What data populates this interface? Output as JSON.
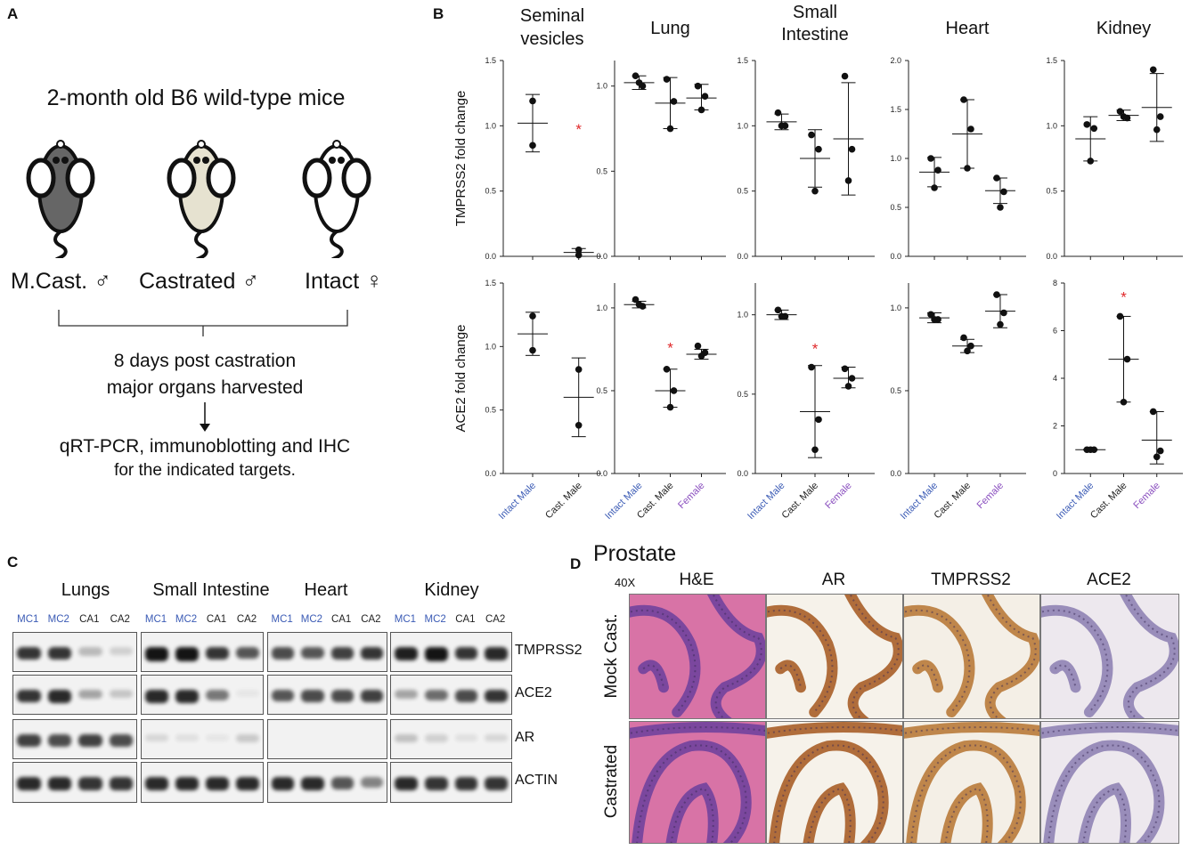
{
  "panel_letters": {
    "a": "A",
    "b": "B",
    "c": "C",
    "d": "D"
  },
  "panel_a": {
    "title": "2-month old B6 wild-type mice",
    "groups": [
      "M.Cast.",
      "Castrated",
      "Intact"
    ],
    "timepoint_line1": "8 days post castration",
    "timepoint_line2": "major organs harvested",
    "assay_line1": "qRT-PCR, immunoblotting and IHC",
    "assay_line2": "for the indicated targets.",
    "mouse_colors": [
      "#666666",
      "#e6e2d0",
      "#ffffff"
    ]
  },
  "panel_b": {
    "row_labels": [
      "TMPRSS2 fold change",
      "ACE2 fold change"
    ],
    "organ_titles": [
      "Seminal\nvesicles",
      "Lung",
      "Small\nIntestine",
      "Heart",
      "Kidney"
    ],
    "group_labels": [
      "Intact Male",
      "Cast. Male",
      "Female"
    ],
    "group_colors": [
      "#3b5bb5",
      "#222222",
      "#8a4fbf"
    ],
    "significance_mark": "*",
    "significance_color": "#e0292b"
  },
  "chart_data": [
    {
      "type": "scatter",
      "organ": "Seminal vesicles",
      "gene": "TMPRSS2",
      "ylim": [
        0,
        1.5
      ],
      "yticks": [
        "0.0",
        "0.5",
        "1.0",
        "1.5"
      ],
      "groups": [
        {
          "name": "Intact Male",
          "points": [
            1.19,
            0.85
          ],
          "mean": 1.02,
          "sd": [
            0.8,
            1.24
          ]
        },
        {
          "name": "Cast. Male",
          "points": [
            0.05,
            0.01
          ],
          "mean": 0.03,
          "sd": [
            0.0,
            0.06
          ]
        }
      ],
      "sig_group": 1,
      "sig_y": 0.99
    },
    {
      "type": "scatter",
      "organ": "Lung",
      "gene": "TMPRSS2",
      "ylim": [
        0,
        1.15
      ],
      "yticks": [
        "0.0",
        "0.5",
        "1.0"
      ],
      "groups": [
        {
          "name": "Intact Male",
          "points": [
            1.06,
            1.0,
            1.02
          ],
          "mean": 1.02,
          "sd": [
            0.98,
            1.06
          ]
        },
        {
          "name": "Cast. Male",
          "points": [
            1.04,
            0.91,
            0.75
          ],
          "mean": 0.9,
          "sd": [
            0.75,
            1.05
          ]
        },
        {
          "name": "Female",
          "points": [
            1.0,
            0.94,
            0.86
          ],
          "mean": 0.93,
          "sd": [
            0.86,
            1.01
          ]
        }
      ],
      "sig_group": null
    },
    {
      "type": "scatter",
      "organ": "Small Intestine",
      "gene": "TMPRSS2",
      "ylim": [
        0,
        1.5
      ],
      "yticks": [
        "0.0",
        "0.5",
        "1.0",
        "1.5"
      ],
      "groups": [
        {
          "name": "Intact Male",
          "points": [
            1.1,
            1.0,
            1.0
          ],
          "mean": 1.03,
          "sd": [
            0.97,
            1.09
          ]
        },
        {
          "name": "Cast. Male",
          "points": [
            0.93,
            0.82,
            0.5
          ],
          "mean": 0.75,
          "sd": [
            0.53,
            0.97
          ]
        },
        {
          "name": "Female",
          "points": [
            1.38,
            0.82,
            0.58
          ],
          "mean": 0.9,
          "sd": [
            0.47,
            1.33
          ]
        }
      ],
      "sig_group": null
    },
    {
      "type": "scatter",
      "organ": "Heart",
      "gene": "TMPRSS2",
      "ylim": [
        0,
        2.0
      ],
      "yticks": [
        "0.0",
        "0.5",
        "1.0",
        "1.5",
        "2.0"
      ],
      "groups": [
        {
          "name": "Intact Male",
          "points": [
            1.0,
            0.88,
            0.7
          ],
          "mean": 0.86,
          "sd": [
            0.71,
            1.01
          ]
        },
        {
          "name": "Cast. Male",
          "points": [
            1.6,
            1.3,
            0.9
          ],
          "mean": 1.25,
          "sd": [
            0.9,
            1.6
          ]
        },
        {
          "name": "Female",
          "points": [
            0.8,
            0.66,
            0.5
          ],
          "mean": 0.67,
          "sd": [
            0.54,
            0.8
          ]
        }
      ],
      "sig_group": null
    },
    {
      "type": "scatter",
      "organ": "Kidney",
      "gene": "TMPRSS2",
      "ylim": [
        0,
        1.5
      ],
      "yticks": [
        "0.0",
        "0.5",
        "1.0",
        "1.5"
      ],
      "groups": [
        {
          "name": "Intact Male",
          "points": [
            1.01,
            0.98,
            0.73
          ],
          "mean": 0.9,
          "sd": [
            0.73,
            1.07
          ]
        },
        {
          "name": "Cast. Male",
          "points": [
            1.11,
            1.06,
            1.07
          ],
          "mean": 1.08,
          "sd": [
            1.04,
            1.12
          ]
        },
        {
          "name": "Female",
          "points": [
            1.43,
            1.07,
            0.97
          ],
          "mean": 1.14,
          "sd": [
            0.88,
            1.4
          ]
        }
      ],
      "sig_group": null
    },
    {
      "type": "scatter",
      "organ": "Seminal vesicles",
      "gene": "ACE2",
      "ylim": [
        0,
        1.5
      ],
      "yticks": [
        "0.0",
        "0.5",
        "1.0",
        "1.5"
      ],
      "groups": [
        {
          "name": "Intact Male",
          "points": [
            1.24,
            0.97
          ],
          "mean": 1.1,
          "sd": [
            0.93,
            1.27
          ]
        },
        {
          "name": "Cast. Male",
          "points": [
            0.82,
            0.38
          ],
          "mean": 0.6,
          "sd": [
            0.29,
            0.91
          ]
        }
      ],
      "sig_group": null
    },
    {
      "type": "scatter",
      "organ": "Lung",
      "gene": "ACE2",
      "ylim": [
        0,
        1.15
      ],
      "yticks": [
        "0.0",
        "0.5",
        "1.0"
      ],
      "groups": [
        {
          "name": "Intact Male",
          "points": [
            1.05,
            1.01,
            1.02
          ],
          "mean": 1.02,
          "sd": [
            1.0,
            1.04
          ]
        },
        {
          "name": "Cast. Male",
          "points": [
            0.63,
            0.5,
            0.4
          ],
          "mean": 0.5,
          "sd": [
            0.4,
            0.63
          ]
        },
        {
          "name": "Female",
          "points": [
            0.77,
            0.73,
            0.71
          ],
          "mean": 0.72,
          "sd": [
            0.69,
            0.75
          ]
        }
      ],
      "sig_group": 1,
      "sig_y": 0.77
    },
    {
      "type": "scatter",
      "organ": "Small Intestine",
      "gene": "ACE2",
      "ylim": [
        0,
        1.2
      ],
      "yticks": [
        "0.0",
        "0.5",
        "1.0"
      ],
      "groups": [
        {
          "name": "Intact Male",
          "points": [
            1.03,
            0.99,
            0.99
          ],
          "mean": 1.0,
          "sd": [
            0.97,
            1.03
          ]
        },
        {
          "name": "Cast. Male",
          "points": [
            0.67,
            0.34,
            0.15
          ],
          "mean": 0.39,
          "sd": [
            0.1,
            0.68
          ]
        },
        {
          "name": "Female",
          "points": [
            0.66,
            0.6,
            0.55
          ],
          "mean": 0.6,
          "sd": [
            0.54,
            0.67
          ]
        }
      ],
      "sig_group": 1,
      "sig_y": 0.8
    },
    {
      "type": "scatter",
      "organ": "Heart",
      "gene": "ACE2",
      "ylim": [
        0,
        1.15
      ],
      "yticks": [
        "0.0",
        "0.5",
        "1.0"
      ],
      "groups": [
        {
          "name": "Intact Male",
          "points": [
            0.96,
            0.93,
            0.93
          ],
          "mean": 0.94,
          "sd": [
            0.91,
            0.97
          ]
        },
        {
          "name": "Cast. Male",
          "points": [
            0.82,
            0.77,
            0.74
          ],
          "mean": 0.77,
          "sd": [
            0.73,
            0.81
          ]
        },
        {
          "name": "Female",
          "points": [
            1.08,
            0.97,
            0.9
          ],
          "mean": 0.98,
          "sd": [
            0.88,
            1.08
          ]
        }
      ],
      "sig_group": null
    },
    {
      "type": "scatter",
      "organ": "Kidney",
      "gene": "ACE2",
      "ylim": [
        0,
        8
      ],
      "yticks": [
        "0",
        "2",
        "4",
        "6",
        "8"
      ],
      "groups": [
        {
          "name": "Intact Male",
          "points": [
            1.0,
            1.0,
            1.0
          ],
          "mean": 1.0,
          "sd": [
            0.98,
            1.02
          ]
        },
        {
          "name": "Cast. Male",
          "points": [
            6.6,
            4.8,
            3.0
          ],
          "mean": 4.8,
          "sd": [
            3.0,
            6.6
          ]
        },
        {
          "name": "Female",
          "points": [
            2.6,
            0.95,
            0.7
          ],
          "mean": 1.4,
          "sd": [
            0.4,
            2.6
          ]
        }
      ],
      "sig_group": 1,
      "sig_y": 7.5
    }
  ],
  "panel_c": {
    "tissues": [
      "Lungs",
      "Small Intestine",
      "Heart",
      "Kidney"
    ],
    "lanes": [
      "MC1",
      "MC2",
      "CA1",
      "CA2"
    ],
    "lane_colors": [
      "#3b5bb5",
      "#3b5bb5",
      "#222222",
      "#222222"
    ],
    "targets": [
      "TMPRSS2",
      "ACE2",
      "AR",
      "ACTIN"
    ],
    "band_intensity": [
      [
        [
          0.85,
          0.85,
          0.25,
          0.15
        ],
        [
          1,
          1,
          0.85,
          0.7
        ],
        [
          0.75,
          0.7,
          0.8,
          0.85
        ],
        [
          0.95,
          1,
          0.85,
          0.9
        ]
      ],
      [
        [
          0.85,
          0.9,
          0.35,
          0.2
        ],
        [
          0.9,
          0.9,
          0.55,
          0.05
        ],
        [
          0.7,
          0.75,
          0.75,
          0.8
        ],
        [
          0.35,
          0.6,
          0.75,
          0.85
        ]
      ],
      [
        [
          0.8,
          0.75,
          0.8,
          0.75
        ],
        [
          0.12,
          0.08,
          0.05,
          0.18
        ],
        [
          0,
          0,
          0,
          0
        ],
        [
          0.22,
          0.15,
          0.08,
          0.12
        ]
      ],
      [
        [
          0.9,
          0.9,
          0.85,
          0.85
        ],
        [
          0.9,
          0.9,
          0.9,
          0.9
        ],
        [
          0.9,
          0.9,
          0.7,
          0.5
        ],
        [
          0.9,
          0.85,
          0.85,
          0.85
        ]
      ]
    ]
  },
  "panel_d": {
    "title": "Prostate",
    "magnification": "40X",
    "stains": [
      "H&E",
      "AR",
      "TMPRSS2",
      "ACE2"
    ],
    "row_labels": [
      "Mock Cast.",
      "Castrated"
    ],
    "stain_colors": {
      "he_bg": "#d873a6",
      "he_epi": "#6b3f9c",
      "ar_bg": "#f6f2ea",
      "ar_epi": "#a3561c",
      "tm_bg": "#f4efe6",
      "tm_epi": "#b5732f",
      "ace_bg": "#ede8ee",
      "ace_epi": "#8a7db0"
    }
  }
}
